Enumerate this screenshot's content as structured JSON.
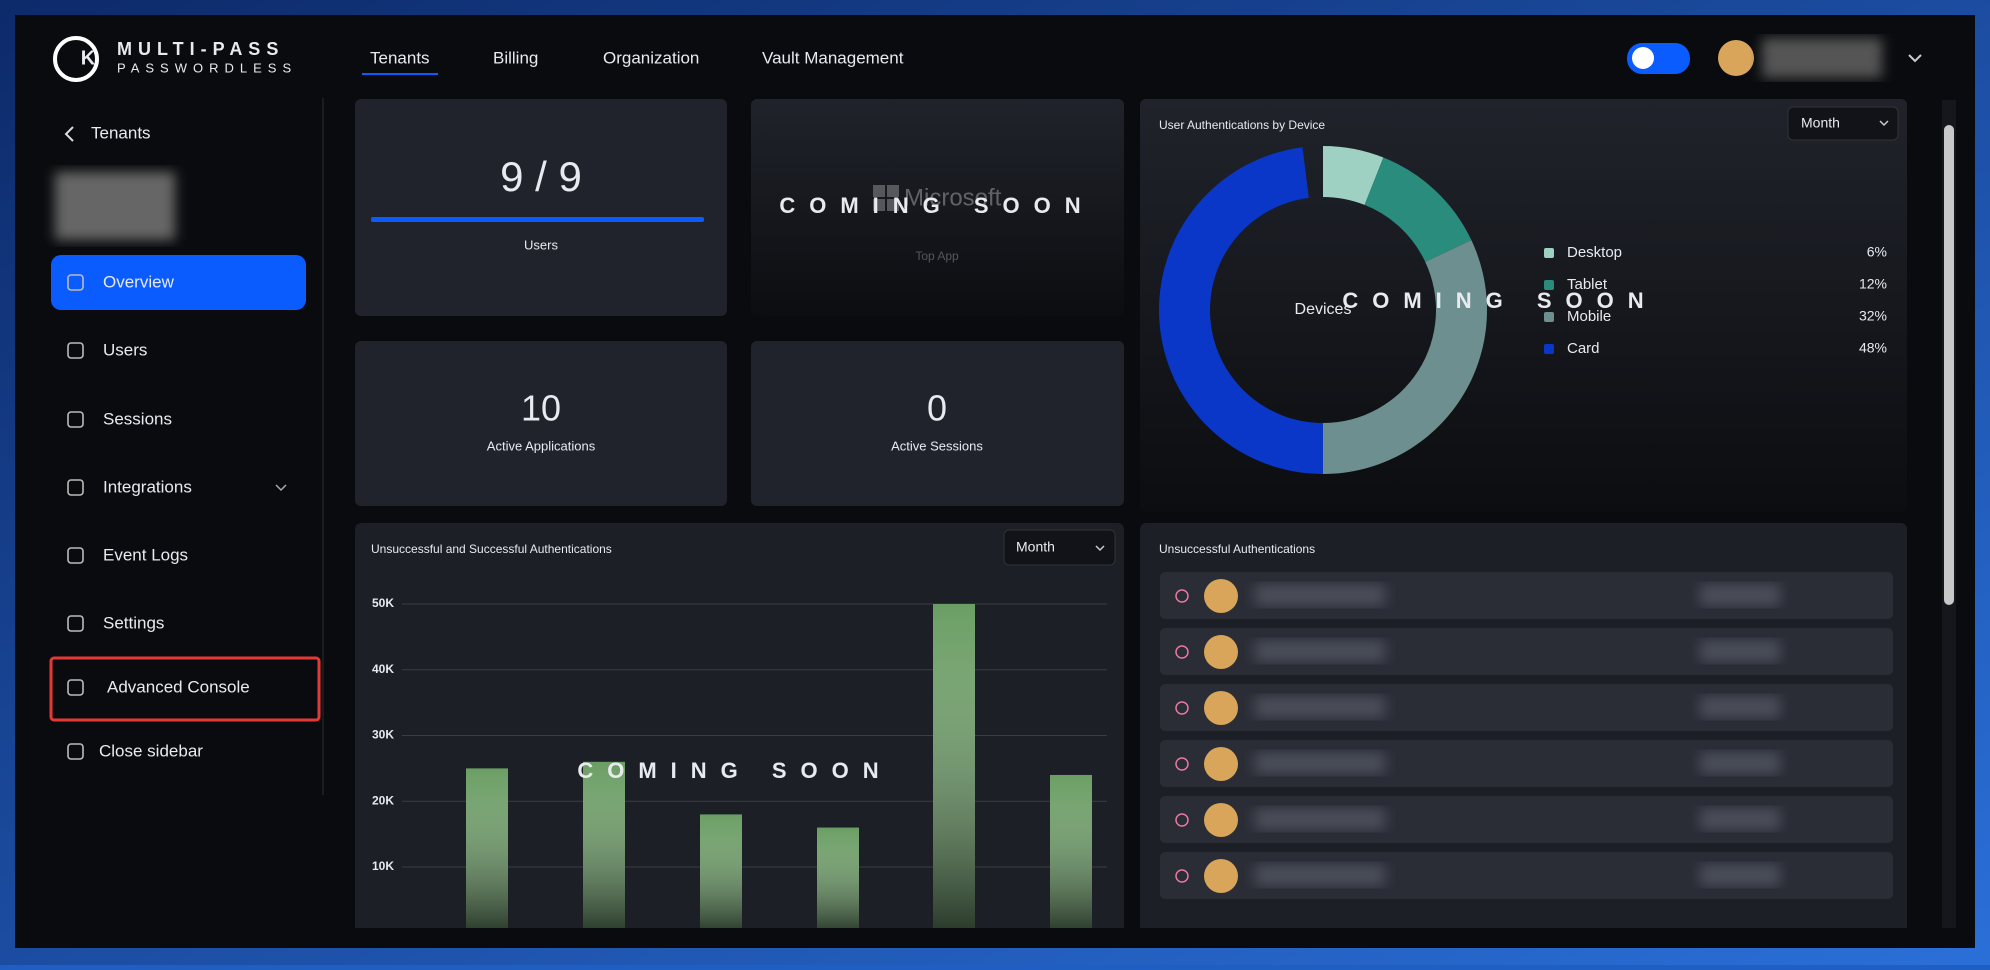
{
  "header": {
    "logo_top": "MULTI-PASS",
    "logo_bottom": "PASSWORDLESS",
    "tabs": [
      "Tenants",
      "Billing",
      "Organization",
      "Vault Management"
    ]
  },
  "sidebar": {
    "back": "Tenants",
    "items": [
      "Overview",
      "Users",
      "Sessions",
      "Integrations",
      "Event Logs",
      "Settings",
      "Advanced Console",
      "Close sidebar"
    ]
  },
  "coming_soon": "COMING SOON",
  "users_card": {
    "value": "9 / 9",
    "label": "Users"
  },
  "top_app_card": {
    "app": "Microsoft",
    "label": "Top App"
  },
  "apps_card": {
    "value": "10",
    "label": "Active Applications"
  },
  "sessions_card": {
    "value": "0",
    "label": "Active Sessions"
  },
  "device_chart": {
    "type": "pie",
    "title": "User Authentications by Device",
    "center_label": "Devices",
    "dropdown": "Month",
    "categories": [
      "Desktop",
      "Tablet",
      "Mobile",
      "Card"
    ],
    "values": [
      6,
      12,
      32,
      48
    ],
    "value_labels": [
      "6%",
      "12%",
      "32%",
      "48%"
    ],
    "colors": [
      "#9fd1c2",
      "#2a8c7c",
      "#6e8f8f",
      "#0a37c8"
    ]
  },
  "bar_chart": {
    "type": "bar",
    "title": "Unsuccessful and Successful Authentications",
    "dropdown": "Month",
    "values": [
      25000,
      0,
      26000,
      18000,
      16000,
      50000,
      24000
    ],
    "color": "#6a9e63",
    "ylim": [
      0,
      50000
    ],
    "yticks": [
      {
        "value": 10000,
        "label": "10K"
      },
      {
        "value": 20000,
        "label": "20K"
      },
      {
        "value": 30000,
        "label": "30K"
      },
      {
        "value": 40000,
        "label": "40K"
      },
      {
        "value": 50000,
        "label": "50K"
      }
    ],
    "grid": true
  },
  "list_card": {
    "title": "Unsuccessful Authentications"
  }
}
